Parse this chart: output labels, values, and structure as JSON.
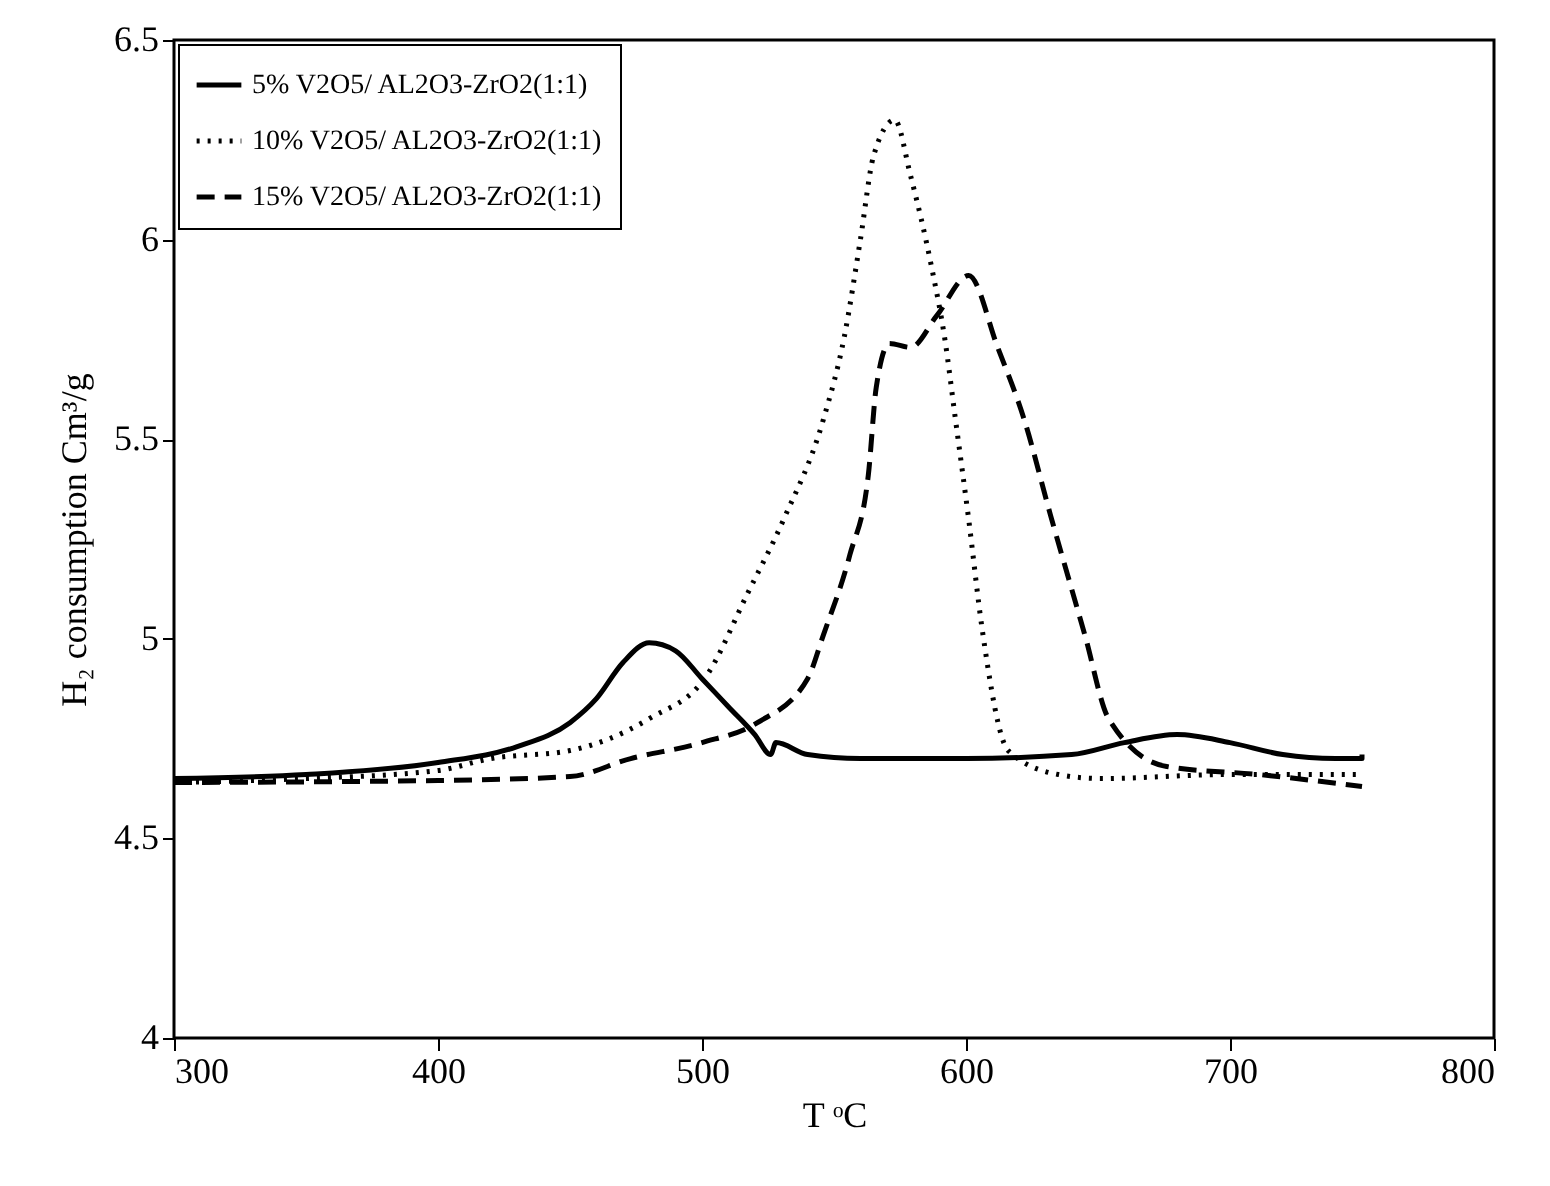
{
  "chart_data": {
    "type": "line",
    "xlabel": "T ᵒC",
    "ylabel": "H₂ consumption Cm³/g",
    "xlim": [
      300,
      800
    ],
    "xticks": [
      300,
      400,
      500,
      600,
      700,
      800
    ],
    "ylim": [
      4,
      6.5
    ],
    "yticks": [
      4,
      4.5,
      5,
      5.5,
      6,
      6.5
    ],
    "grid": false,
    "legend": "top left",
    "series": [
      {
        "name": "5% V2O5/ AL2O3-ZrO2(1:1)",
        "color": "#000000",
        "line_style": "solid",
        "x": [
          300,
          350,
          400,
          430,
          450,
          460,
          470,
          480,
          490,
          500,
          510,
          520,
          526,
          528,
          540,
          560,
          600,
          640,
          660,
          680,
          700,
          720,
          740,
          750,
          750
        ],
        "values": [
          4.65,
          4.66,
          4.69,
          4.73,
          4.79,
          4.85,
          4.94,
          4.99,
          4.97,
          4.9,
          4.83,
          4.76,
          4.71,
          4.74,
          4.71,
          4.7,
          4.7,
          4.71,
          4.74,
          4.76,
          4.74,
          4.71,
          4.7,
          4.7,
          4.71
        ]
      },
      {
        "name": "10% V2O5/ AL2O3-ZrO2(1:1)",
        "color": "#000000",
        "line_style": "dotted",
        "x": [
          300,
          350,
          400,
          420,
          450,
          480,
          502,
          517,
          531,
          546,
          554,
          560,
          565,
          573,
          579,
          587,
          592,
          596,
          601,
          606,
          616,
          635,
          651,
          700,
          750
        ],
        "values": [
          4.64,
          4.65,
          4.67,
          4.7,
          4.72,
          4.8,
          4.91,
          5.11,
          5.3,
          5.55,
          5.76,
          6.0,
          6.21,
          6.3,
          6.16,
          5.93,
          5.75,
          5.55,
          5.3,
          5.03,
          4.72,
          4.66,
          4.65,
          4.66,
          4.66
        ]
      },
      {
        "name": "15% V2O5/ AL2O3-ZrO2(1:1)",
        "color": "#000000",
        "line_style": "dashed",
        "x": [
          300,
          400,
          450,
          473,
          500,
          521,
          540,
          546,
          556,
          563,
          566,
          571,
          579,
          589,
          601,
          612,
          622,
          632,
          645,
          654,
          676,
          711,
          750
        ],
        "values": [
          4.64,
          4.645,
          4.655,
          4.7,
          4.74,
          4.79,
          4.9,
          5.01,
          5.21,
          5.41,
          5.63,
          5.74,
          5.73,
          5.81,
          5.91,
          5.73,
          5.55,
          5.31,
          5.01,
          4.8,
          4.68,
          4.66,
          4.63
        ]
      }
    ]
  }
}
